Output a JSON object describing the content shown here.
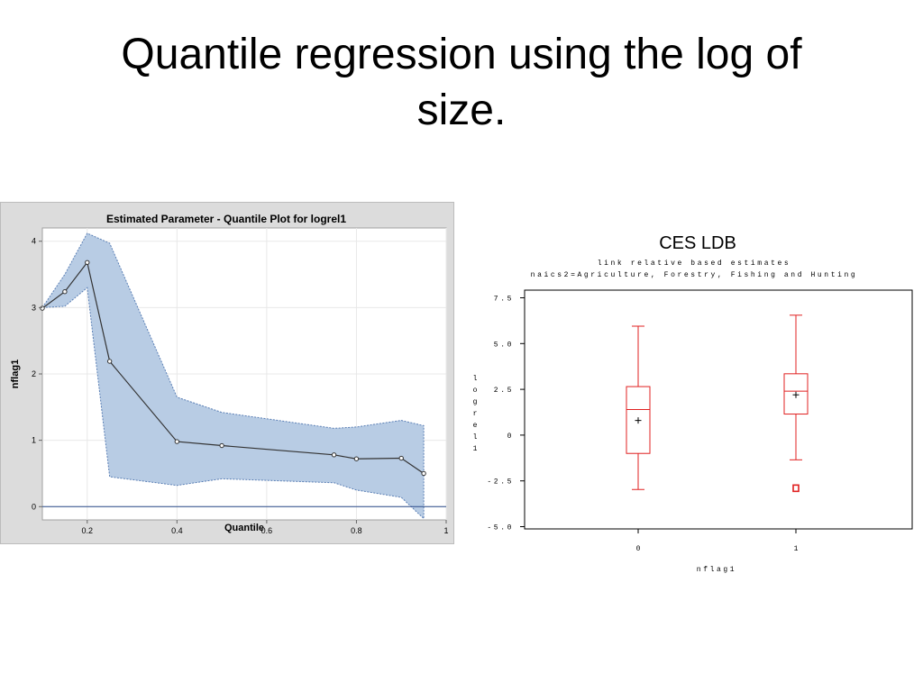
{
  "slide": {
    "title_line1": "Quantile regression using the log of",
    "title_line2": "size."
  },
  "colors": {
    "band_fill": "#b8cce4",
    "band_edge": "#5a7fb5",
    "line": "#333333",
    "box_red": "#e02020",
    "panel_bg": "#dcdcdc"
  },
  "chart_data": [
    {
      "type": "line",
      "title": "Estimated Parameter - Quantile Plot for logrel1",
      "xlabel": "Quantile",
      "ylabel": "nflag1",
      "xlim": [
        0.1,
        1.0
      ],
      "ylim": [
        -0.2,
        4.2
      ],
      "grid": true,
      "x_ticks": [
        0.2,
        0.4,
        0.6,
        0.8,
        1
      ],
      "x_tick_labels": [
        "0.2",
        "0.4",
        "0.6",
        "0.8",
        "1"
      ],
      "y_ticks": [
        0,
        1,
        2,
        3,
        4
      ],
      "y_tick_labels": [
        "0",
        "1",
        "2",
        "3",
        "4"
      ],
      "reference_line_y": 0,
      "series": [
        {
          "x": [
            0.1,
            0.15,
            0.2,
            0.25,
            0.4,
            0.5,
            0.75,
            0.8,
            0.9,
            0.95
          ],
          "values": [
            2.99,
            3.24,
            3.68,
            2.19,
            0.98,
            0.92,
            0.78,
            0.72,
            0.73,
            0.5
          ]
        }
      ],
      "confidence_band": {
        "x": [
          0.1,
          0.15,
          0.2,
          0.25,
          0.4,
          0.5,
          0.75,
          0.8,
          0.9,
          0.95
        ],
        "upper": [
          3.0,
          3.5,
          4.12,
          3.97,
          1.65,
          1.42,
          1.18,
          1.2,
          1.3,
          1.22
        ],
        "lower": [
          3.0,
          3.02,
          3.3,
          0.45,
          0.32,
          0.42,
          0.36,
          0.25,
          0.14,
          -0.18
        ]
      }
    },
    {
      "type": "box",
      "title": "CES LDB",
      "subtitle1": "link relative based estimates",
      "subtitle2": "naics2=Agriculture, Forestry, Fishing and Hunting",
      "xlabel": "nflag1",
      "ylabel": "logrel1",
      "ylim": [
        -5.0,
        7.5
      ],
      "y_ticks": [
        7.5,
        5.0,
        2.5,
        0,
        -2.5,
        -5.0
      ],
      "y_tick_labels": [
        "7.5",
        "5.0",
        "2.5",
        "0",
        "-2.5",
        "-5.0"
      ],
      "categories": [
        "0",
        "1"
      ],
      "boxes": [
        {
          "category": "0",
          "min": -2.97,
          "q1": -1.0,
          "median": 1.4,
          "q3": 2.65,
          "max": 5.95,
          "mean": 0.8,
          "outliers": []
        },
        {
          "category": "1",
          "min": -1.35,
          "q1": 1.15,
          "median": 2.4,
          "q3": 3.35,
          "max": 6.55,
          "mean": 2.2,
          "outliers": [
            -2.9
          ]
        }
      ]
    }
  ]
}
